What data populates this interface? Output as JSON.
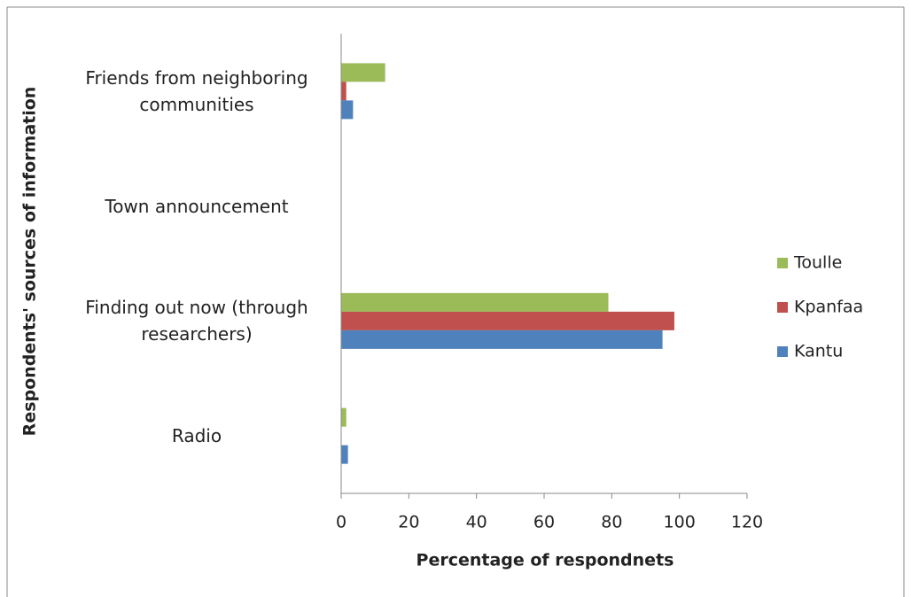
{
  "chart_data": {
    "type": "bar",
    "orientation": "horizontal",
    "x_label": "Percentage of respondnets",
    "y_label": "Respondents' sources of information",
    "categories": [
      "Friends from neighboring communities",
      "Town announcement",
      "Finding out now (through researchers)",
      "Radio"
    ],
    "series": [
      {
        "name": "Toulle",
        "color": "#9bbb59",
        "values": [
          13,
          0,
          79,
          1.5
        ]
      },
      {
        "name": "Kpanfaa",
        "color": "#c0504d",
        "values": [
          1.5,
          0,
          98.5,
          0
        ]
      },
      {
        "name": "Kantu",
        "color": "#4f81bd",
        "values": [
          3.5,
          0,
          95,
          2
        ]
      }
    ],
    "xlim": [
      0,
      120
    ],
    "xticks": [
      0,
      20,
      40,
      60,
      80,
      100,
      120
    ],
    "legend": "right"
  }
}
